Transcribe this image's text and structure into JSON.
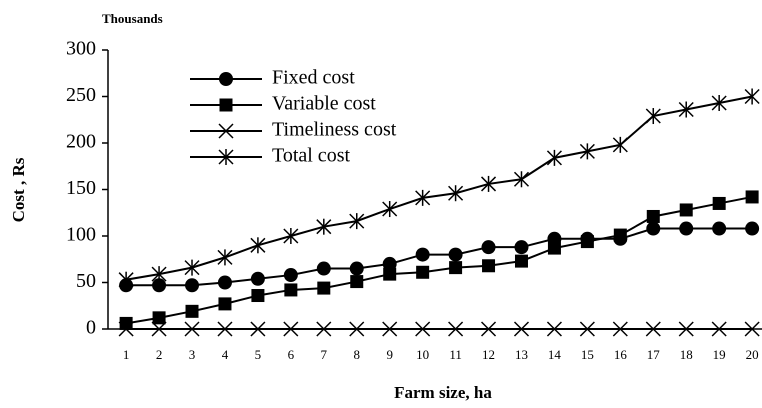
{
  "chart_data": {
    "type": "line",
    "units_note": "Thousands",
    "ylabel": "Cost , Rs",
    "xlabel": "Farm size, ha",
    "x": [
      1,
      2,
      3,
      4,
      5,
      6,
      7,
      8,
      9,
      10,
      11,
      12,
      13,
      14,
      15,
      16,
      17,
      18,
      19,
      20
    ],
    "xlim": [
      0.45,
      20.3
    ],
    "xticks": [
      1,
      2,
      3,
      4,
      5,
      6,
      7,
      8,
      9,
      10,
      11,
      12,
      13,
      14,
      15,
      16,
      17,
      18,
      19,
      20
    ],
    "ylim": [
      0,
      300
    ],
    "yticks": [
      0,
      50,
      100,
      150,
      200,
      250,
      300
    ],
    "grid": false,
    "legend": "upper left",
    "series": [
      {
        "name": "Fixed cost",
        "color": "#000000",
        "marker": "circle",
        "values": [
          47,
          47,
          47,
          50,
          54,
          58,
          65,
          65,
          70,
          80,
          80,
          88,
          88,
          97,
          97,
          97,
          108,
          108,
          108,
          108
        ]
      },
      {
        "name": "Variable cost",
        "color": "#000000",
        "marker": "square",
        "values": [
          6,
          12,
          19,
          27,
          36,
          42,
          44,
          51,
          59,
          61,
          66,
          68,
          73,
          87,
          94,
          101,
          121,
          128,
          135,
          142
        ]
      },
      {
        "name": "Timeliness cost",
        "color": "#000000",
        "marker": "x",
        "values": [
          0,
          0,
          0,
          0,
          0,
          0,
          0,
          0,
          0,
          0,
          0,
          0,
          0,
          0,
          0,
          0,
          0,
          0,
          0,
          0
        ]
      },
      {
        "name": "Total cost",
        "color": "#000000",
        "marker": "asterisk",
        "values": [
          53,
          59,
          66,
          77,
          90,
          100,
          110,
          116,
          129,
          141,
          146,
          156,
          161,
          184,
          191,
          198,
          229,
          236,
          243,
          250
        ]
      }
    ]
  }
}
